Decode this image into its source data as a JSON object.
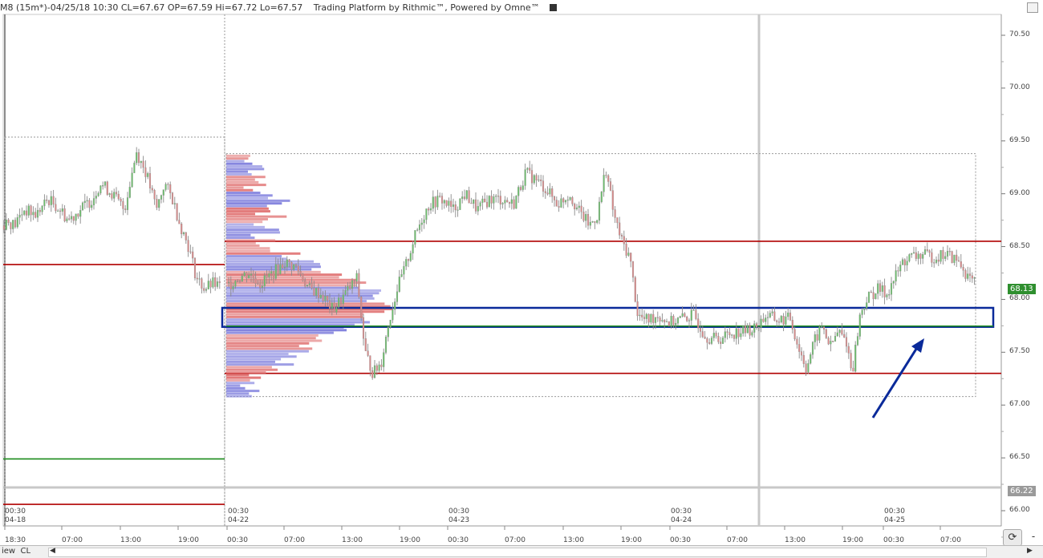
{
  "header": {
    "instrument_info": "M8 (15m*)-04/25/18 10:30 CL=67.67 OP=67.59 Hi=67.72 Lo=67.57",
    "platform": "Trading Platform by Rithmic™, Powered by Omne™"
  },
  "colors": {
    "support_line": "#b00000",
    "green_line": "#1a8a1a",
    "highlight_box": "#0a2a9a",
    "arrow": "#0a2a9a",
    "candle": "#8a8a8a",
    "up_candle": "#6cbf6c",
    "down_candle": "#d98a8a",
    "profile_buy": "#7b7bdc",
    "profile_sell": "#e07070"
  },
  "price_axis": {
    "labels": [
      "70.50",
      "70.00",
      "69.50",
      "69.00",
      "68.50",
      "68.00",
      "67.50",
      "67.00",
      "66.50",
      "66.00"
    ],
    "current_price": "68.13",
    "marker_price": "66.22"
  },
  "time_axis": {
    "session_labels": [
      {
        "time": "00:30",
        "date": "04-18"
      },
      {
        "time": "00:30",
        "date": "04-22"
      },
      {
        "time": "00:30",
        "date": "04-23"
      },
      {
        "time": "00:30",
        "date": "04-24"
      },
      {
        "time": "00:30",
        "date": "04-25"
      }
    ],
    "hour_labels": [
      "18:30",
      "07:00",
      "13:00",
      "19:00",
      "00:30",
      "07:00",
      "13:00",
      "19:00",
      "00:30",
      "07:00",
      "13:00",
      "19:00",
      "00:30",
      "07:00",
      "13:00",
      "19:00",
      "00:30",
      "07:00"
    ]
  },
  "chart_data": {
    "type": "candlestick",
    "interval": "15m",
    "levels": [
      {
        "price": 68.55,
        "color": "#b00000"
      },
      {
        "price": 68.33,
        "color": "#b00000"
      },
      {
        "price": 67.3,
        "color": "#b00000"
      },
      {
        "price": 66.49,
        "color": "#1a8a1a"
      },
      {
        "price": 66.06,
        "color": "#b00000"
      }
    ],
    "highlight_zone": {
      "low": 67.74,
      "high": 67.92
    },
    "profile_range": {
      "low": 67.08,
      "high": 69.38
    },
    "anchors": [
      [
        0,
        68.65
      ],
      [
        8,
        68.75
      ],
      [
        18,
        68.7
      ],
      [
        30,
        68.85
      ],
      [
        45,
        68.8
      ],
      [
        60,
        68.95
      ],
      [
        75,
        68.85
      ],
      [
        85,
        68.75
      ],
      [
        100,
        68.85
      ],
      [
        115,
        68.95
      ],
      [
        125,
        69.1
      ],
      [
        140,
        69.0
      ],
      [
        155,
        68.85
      ],
      [
        170,
        69.4
      ],
      [
        182,
        69.2
      ],
      [
        195,
        68.85
      ],
      [
        205,
        69.1
      ],
      [
        215,
        68.95
      ],
      [
        225,
        68.7
      ],
      [
        235,
        68.5
      ],
      [
        245,
        68.2
      ],
      [
        255,
        68.1
      ],
      [
        265,
        68.15
      ],
      [
        280,
        68.1
      ],
      [
        295,
        68.2
      ],
      [
        310,
        68.25
      ],
      [
        325,
        68.15
      ],
      [
        340,
        68.25
      ],
      [
        355,
        68.35
      ],
      [
        370,
        68.3
      ],
      [
        385,
        68.1
      ],
      [
        400,
        68.05
      ],
      [
        415,
        67.9
      ],
      [
        430,
        68.05
      ],
      [
        445,
        68.2
      ],
      [
        455,
        67.5
      ],
      [
        465,
        67.3
      ],
      [
        475,
        67.4
      ],
      [
        485,
        67.8
      ],
      [
        495,
        68.1
      ],
      [
        505,
        68.3
      ],
      [
        515,
        68.55
      ],
      [
        525,
        68.75
      ],
      [
        535,
        68.9
      ],
      [
        550,
        68.95
      ],
      [
        565,
        68.85
      ],
      [
        580,
        69.0
      ],
      [
        595,
        68.85
      ],
      [
        610,
        68.95
      ],
      [
        625,
        68.95
      ],
      [
        640,
        68.9
      ],
      [
        655,
        69.2
      ],
      [
        665,
        69.15
      ],
      [
        680,
        69.05
      ],
      [
        695,
        68.9
      ],
      [
        710,
        69.0
      ],
      [
        720,
        68.85
      ],
      [
        735,
        68.7
      ],
      [
        745,
        68.8
      ],
      [
        755,
        69.25
      ],
      [
        765,
        68.8
      ],
      [
        775,
        68.55
      ],
      [
        785,
        68.4
      ],
      [
        795,
        67.85
      ],
      [
        805,
        67.8
      ],
      [
        820,
        67.85
      ],
      [
        835,
        67.78
      ],
      [
        850,
        67.82
      ],
      [
        865,
        67.85
      ],
      [
        880,
        67.65
      ],
      [
        895,
        67.62
      ],
      [
        910,
        67.68
      ],
      [
        925,
        67.7
      ],
      [
        940,
        67.72
      ],
      [
        955,
        67.85
      ],
      [
        970,
        67.8
      ],
      [
        985,
        67.82
      ],
      [
        995,
        67.55
      ],
      [
        1005,
        67.35
      ],
      [
        1015,
        67.6
      ],
      [
        1025,
        67.75
      ],
      [
        1035,
        67.55
      ],
      [
        1045,
        67.7
      ],
      [
        1055,
        67.6
      ],
      [
        1062,
        67.3
      ],
      [
        1072,
        67.85
      ],
      [
        1080,
        68.0
      ],
      [
        1095,
        68.1
      ],
      [
        1105,
        68.05
      ],
      [
        1115,
        68.2
      ],
      [
        1125,
        68.35
      ],
      [
        1135,
        68.4
      ],
      [
        1150,
        68.42
      ],
      [
        1165,
        68.4
      ],
      [
        1180,
        68.43
      ],
      [
        1195,
        68.35
      ],
      [
        1208,
        68.2
      ],
      [
        1215,
        68.15
      ]
    ]
  }
}
